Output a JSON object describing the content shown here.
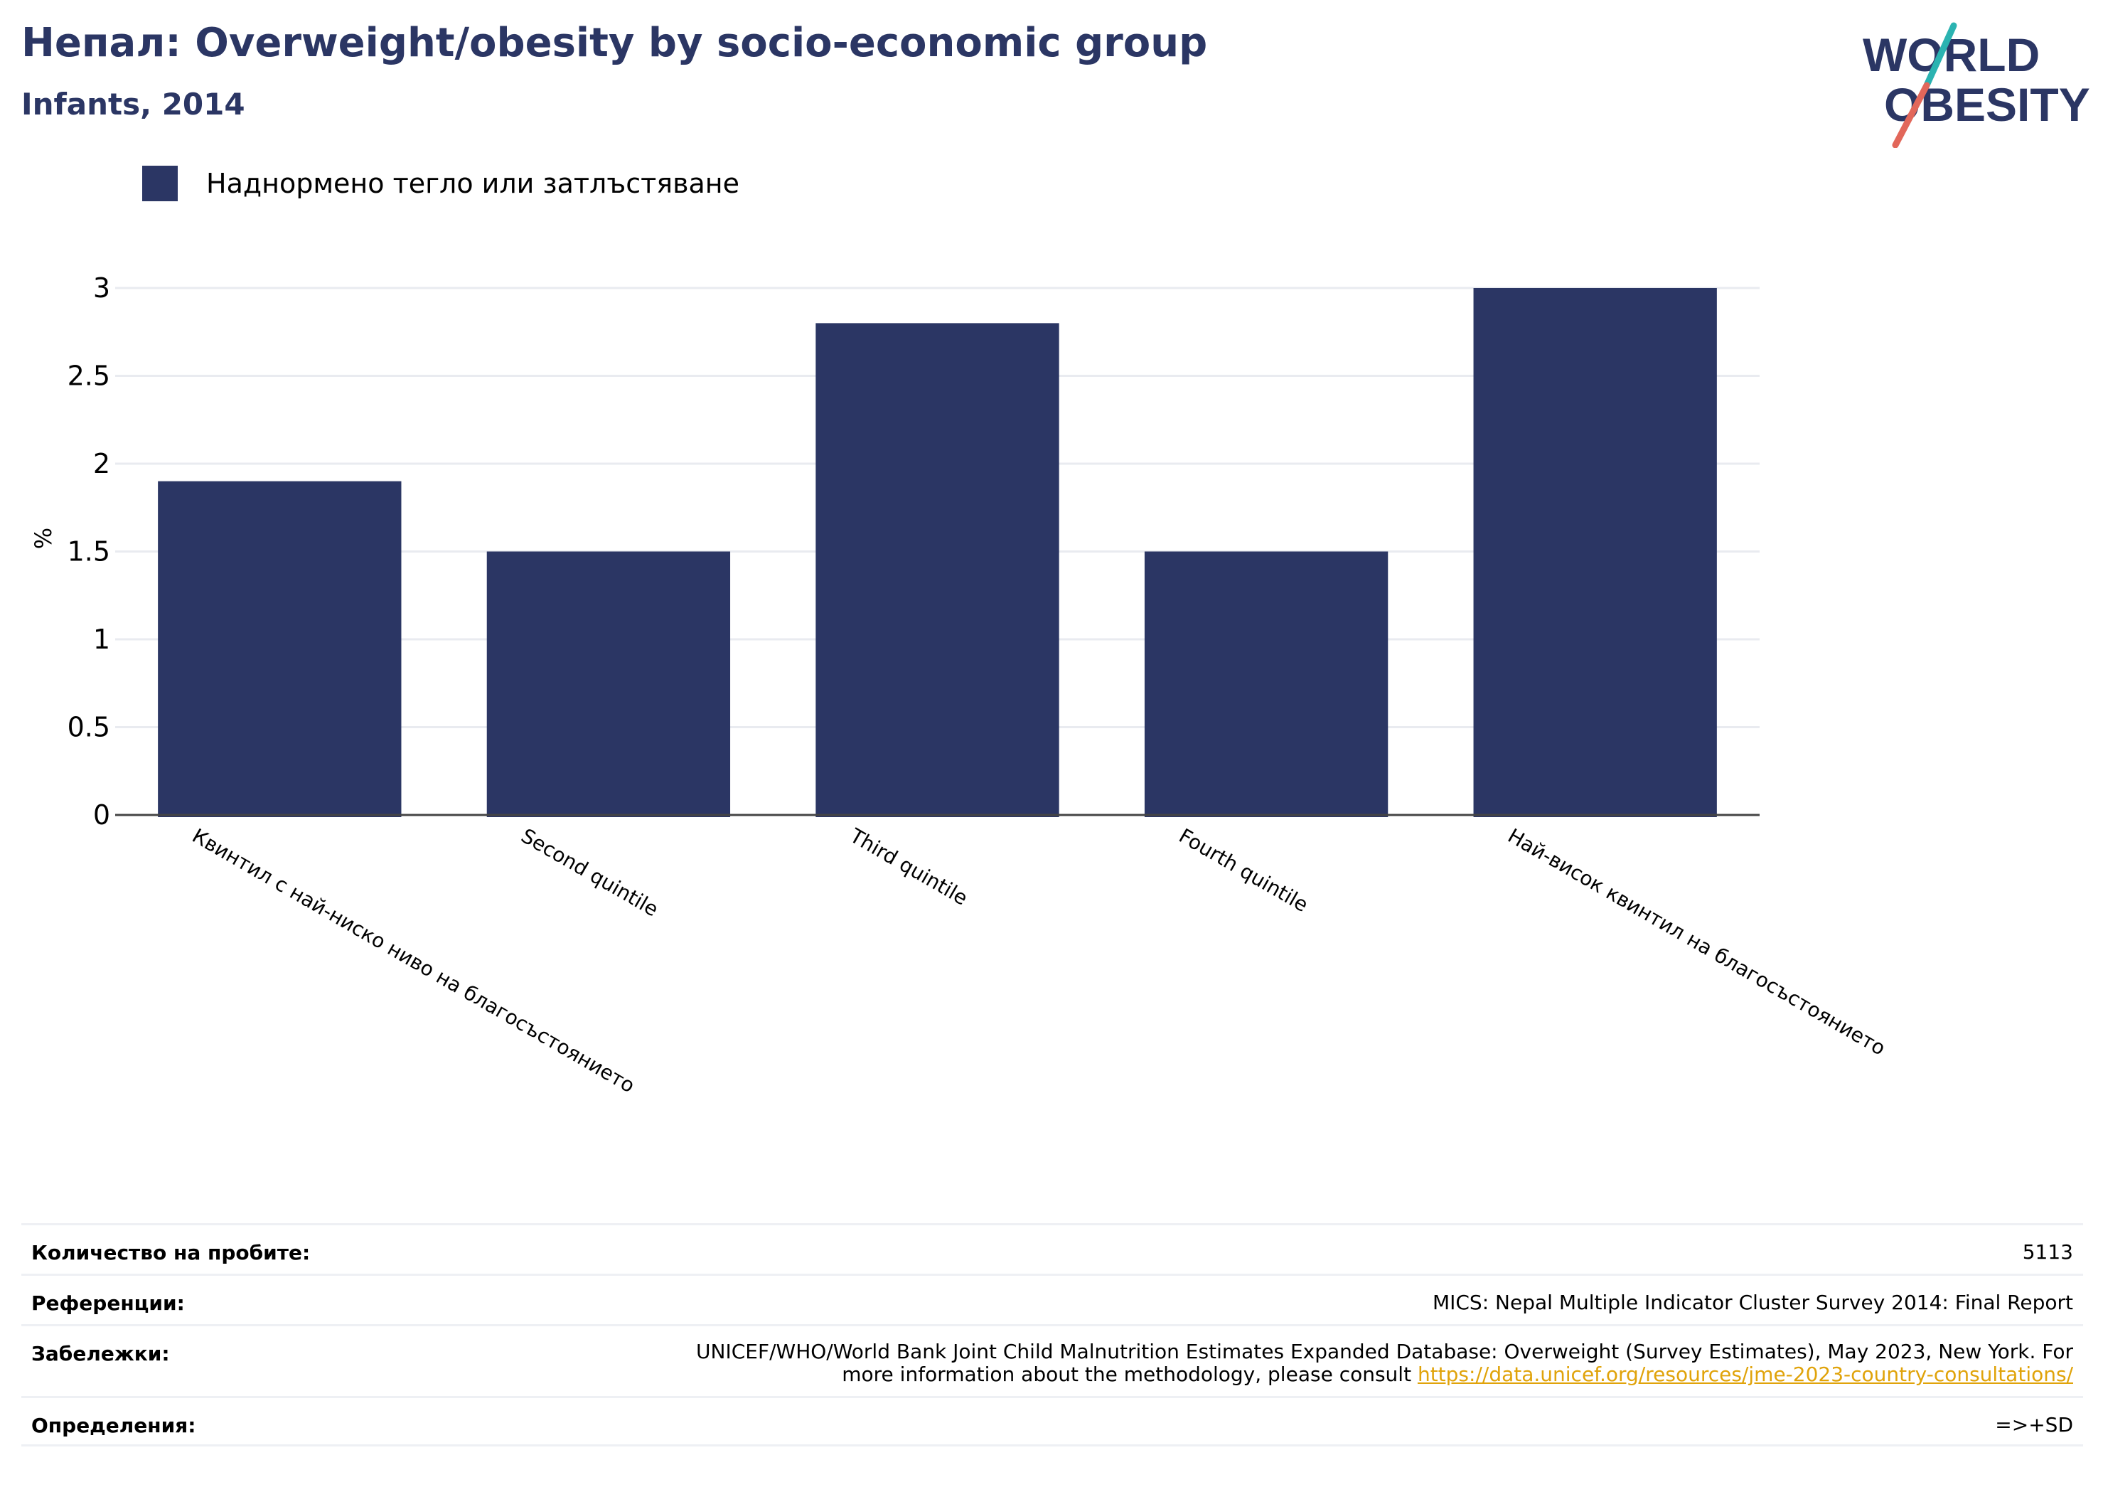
{
  "header": {
    "title": "Непал: Overweight/obesity by socio-economic group",
    "subtitle": "Infants, 2014"
  },
  "logo": {
    "line1": "WORLD",
    "line2": "OBESITY"
  },
  "colors": {
    "bar": "#2b3664",
    "title": "#2b3664",
    "logo_teal": "#2bb3b1",
    "logo_red": "#e2675a",
    "link": "#e0a30a"
  },
  "chart_data": {
    "type": "bar",
    "categories": [
      "Квинтил с най-ниско ниво на благосъстоянието",
      "Second quintile",
      "Third quintile",
      "Fourth quintile",
      "Най-висок квинтил на благосъстоянието"
    ],
    "series": [
      {
        "name": "Наднормено тегло или затлъстяване",
        "values": [
          1.9,
          1.5,
          2.8,
          1.5,
          3.0
        ]
      }
    ],
    "ylabel": "%",
    "ylim": [
      0,
      3
    ],
    "yticks": [
      0,
      0.5,
      1,
      1.5,
      2,
      2.5,
      3
    ],
    "ytick_labels": [
      "0",
      "0.5",
      "1",
      "1.5",
      "2",
      "2.5",
      "3"
    ],
    "grid": true,
    "legend": "top-left"
  },
  "info": {
    "sample_label": "Количество на пробите:",
    "sample_value": "5113",
    "references_label": "Референции:",
    "references_value": "MICS: Nepal Multiple Indicator Cluster Survey 2014: Final Report",
    "notes_label": "Забележки:",
    "notes_text_1": "UNICEF/WHO/World Bank Joint Child Malnutrition Estimates Expanded Database: Overweight (Survey Estimates), May 2023, New York. For",
    "notes_text_2": "more information about the methodology, please consult ",
    "notes_link": "https://data.unicef.org/resources/jme-2023-country-consultations/",
    "definitions_label": "Определения:",
    "definitions_value": "=>+SD"
  }
}
